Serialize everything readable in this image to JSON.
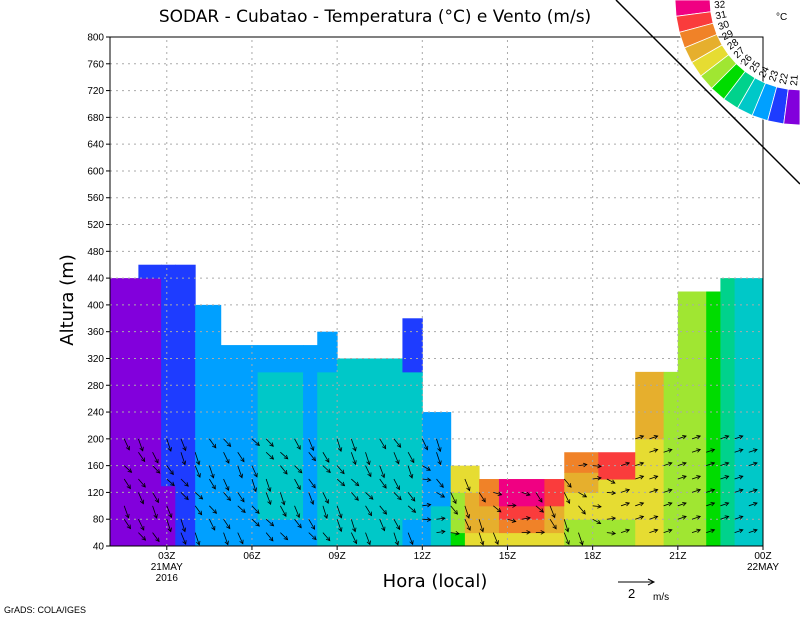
{
  "chart_data": {
    "type": "heatmap",
    "title": "SODAR - Cubatao - Temperatura (°C) e Vento (m/s)",
    "xlabel": "Hora (local)",
    "ylabel": "Altura (m)",
    "xlim": [
      1,
      24
    ],
    "ylim": [
      40,
      800
    ],
    "grid": true,
    "yticks": [
      40,
      80,
      120,
      160,
      200,
      240,
      280,
      320,
      360,
      400,
      440,
      480,
      520,
      560,
      600,
      640,
      680,
      720,
      760,
      800
    ],
    "xticks": [
      {
        "hour": 3,
        "label": "03Z",
        "sub1": "21MAY",
        "sub2": "2016"
      },
      {
        "hour": 6,
        "label": "06Z"
      },
      {
        "hour": 9,
        "label": "09Z"
      },
      {
        "hour": 12,
        "label": "12Z"
      },
      {
        "hour": 15,
        "label": "15Z"
      },
      {
        "hour": 18,
        "label": "18Z"
      },
      {
        "hour": 21,
        "label": "21Z"
      },
      {
        "hour": 24,
        "label": "00Z",
        "sub1": "22MAY"
      }
    ],
    "colorbar": {
      "unit": "°C",
      "levels": [
        32,
        31,
        30,
        29,
        28,
        27,
        26,
        25,
        24,
        23,
        22,
        21
      ],
      "colors": [
        "#f00082",
        "#fa3c3c",
        "#f08228",
        "#e6af2d",
        "#e6dc32",
        "#a0e632",
        "#00dc00",
        "#00d28c",
        "#00c8c8",
        "#00a0ff",
        "#1e3cff",
        "#8200dc"
      ]
    },
    "columns": [
      {
        "t0": 1,
        "t1": 2,
        "top": 440,
        "bands": [
          [
            440,
            21
          ]
        ]
      },
      {
        "t0": 2,
        "t1": 2.8,
        "top": 460,
        "bands": [
          [
            440,
            21
          ],
          [
            460,
            22
          ]
        ]
      },
      {
        "t0": 2.8,
        "t1": 3.3,
        "top": 460,
        "bands": [
          [
            130,
            21
          ],
          [
            460,
            22
          ]
        ]
      },
      {
        "t0": 3.3,
        "t1": 4,
        "top": 460,
        "bands": [
          [
            460,
            22
          ]
        ]
      },
      {
        "t0": 4,
        "t1": 4.9,
        "top": 400,
        "bands": [
          [
            400,
            23
          ]
        ]
      },
      {
        "t0": 4.9,
        "t1": 6.2,
        "top": 340,
        "bands": [
          [
            340,
            23
          ]
        ]
      },
      {
        "t0": 6.2,
        "t1": 7.8,
        "top": 340,
        "bands": [
          [
            80,
            23
          ],
          [
            300,
            24
          ],
          [
            340,
            23
          ]
        ]
      },
      {
        "t0": 7.8,
        "t1": 8.3,
        "top": 340,
        "bands": [
          [
            340,
            23
          ]
        ]
      },
      {
        "t0": 8.3,
        "t1": 9,
        "top": 360,
        "bands": [
          [
            300,
            24
          ],
          [
            360,
            23
          ]
        ]
      },
      {
        "t0": 9,
        "t1": 10.5,
        "top": 320,
        "bands": [
          [
            240,
            24
          ],
          [
            320,
            24
          ]
        ]
      },
      {
        "t0": 10.5,
        "t1": 11.3,
        "top": 320,
        "bands": [
          [
            320,
            24
          ]
        ]
      },
      {
        "t0": 11.3,
        "t1": 12,
        "top": 380,
        "bands": [
          [
            80,
            23
          ],
          [
            300,
            24
          ],
          [
            380,
            22
          ]
        ]
      },
      {
        "t0": 12,
        "t1": 12.3,
        "top": 240,
        "bands": [
          [
            240,
            23
          ]
        ]
      },
      {
        "t0": 12.3,
        "t1": 13,
        "top": 240,
        "bands": [
          [
            100,
            24
          ],
          [
            240,
            23
          ]
        ]
      },
      {
        "t0": 13,
        "t1": 13.5,
        "top": 160,
        "bands": [
          [
            60,
            26
          ],
          [
            120,
            27
          ],
          [
            160,
            28
          ]
        ]
      },
      {
        "t0": 13.5,
        "t1": 14,
        "top": 160,
        "bands": [
          [
            60,
            28
          ],
          [
            120,
            29
          ],
          [
            160,
            28
          ]
        ]
      },
      {
        "t0": 14,
        "t1": 14.7,
        "top": 140,
        "bands": [
          [
            60,
            28
          ],
          [
            100,
            29
          ],
          [
            140,
            30
          ]
        ]
      },
      {
        "t0": 14.7,
        "t1": 16.3,
        "top": 140,
        "bands": [
          [
            60,
            28
          ],
          [
            80,
            30
          ],
          [
            100,
            31
          ],
          [
            140,
            32
          ]
        ]
      },
      {
        "t0": 16.3,
        "t1": 17,
        "top": 140,
        "bands": [
          [
            60,
            28
          ],
          [
            100,
            29
          ],
          [
            140,
            31
          ]
        ]
      },
      {
        "t0": 17,
        "t1": 18.2,
        "top": 180,
        "bands": [
          [
            80,
            27
          ],
          [
            120,
            28
          ],
          [
            150,
            29
          ],
          [
            180,
            30
          ]
        ]
      },
      {
        "t0": 18.2,
        "t1": 19.5,
        "top": 180,
        "bands": [
          [
            80,
            27
          ],
          [
            140,
            28
          ],
          [
            180,
            31
          ]
        ]
      },
      {
        "t0": 19.5,
        "t1": 20.5,
        "top": 300,
        "bands": [
          [
            200,
            28
          ],
          [
            280,
            29
          ],
          [
            300,
            29
          ]
        ]
      },
      {
        "t0": 20.5,
        "t1": 21,
        "top": 300,
        "bands": [
          [
            300,
            27
          ]
        ]
      },
      {
        "t0": 21,
        "t1": 22,
        "top": 420,
        "bands": [
          [
            420,
            27
          ]
        ]
      },
      {
        "t0": 22,
        "t1": 22.5,
        "top": 420,
        "bands": [
          [
            420,
            26
          ]
        ]
      },
      {
        "t0": 22.5,
        "t1": 23,
        "top": 440,
        "bands": [
          [
            440,
            25
          ]
        ]
      },
      {
        "t0": 23,
        "t1": 24,
        "top": 440,
        "bands": [
          [
            440,
            24
          ]
        ]
      }
    ],
    "vector_reference": {
      "value": "2",
      "unit": "m/s"
    }
  },
  "footer": {
    "credit": "GrADS: COLA/IGES"
  }
}
